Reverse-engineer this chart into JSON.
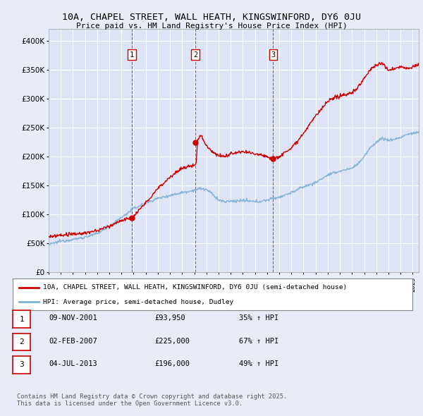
{
  "title_line1": "10A, CHAPEL STREET, WALL HEATH, KINGSWINFORD, DY6 0JU",
  "title_line2": "Price paid vs. HM Land Registry's House Price Index (HPI)",
  "ylim": [
    0,
    420000
  ],
  "yticks": [
    0,
    50000,
    100000,
    150000,
    200000,
    250000,
    300000,
    350000,
    400000
  ],
  "ytick_labels": [
    "£0",
    "£50K",
    "£100K",
    "£150K",
    "£200K",
    "£250K",
    "£300K",
    "£350K",
    "£400K"
  ],
  "background_color": "#e8ecf8",
  "plot_bg_color": "#dde4f5",
  "grid_color": "#ffffff",
  "red_line_color": "#cc0000",
  "blue_line_color": "#7bafd4",
  "vline_color": "#cc0000",
  "marker_color": "#cc0000",
  "legend_label_red": "10A, CHAPEL STREET, WALL HEATH, KINGSWINFORD, DY6 0JU (semi-detached house)",
  "legend_label_blue": "HPI: Average price, semi-detached house, Dudley",
  "sale_markers": [
    {
      "label": "1",
      "date_x": 2001.86,
      "value": 93950
    },
    {
      "label": "2",
      "date_x": 2007.09,
      "value": 225000
    },
    {
      "label": "3",
      "date_x": 2013.5,
      "value": 196000
    }
  ],
  "table_rows": [
    {
      "num": "1",
      "date": "09-NOV-2001",
      "price": "£93,950",
      "change": "35% ↑ HPI"
    },
    {
      "num": "2",
      "date": "02-FEB-2007",
      "price": "£225,000",
      "change": "67% ↑ HPI"
    },
    {
      "num": "3",
      "date": "04-JUL-2013",
      "price": "£196,000",
      "change": "49% ↑ HPI"
    }
  ],
  "footnote": "Contains HM Land Registry data © Crown copyright and database right 2025.\nThis data is licensed under the Open Government Licence v3.0.",
  "xmin": 1995,
  "xmax": 2025.5
}
